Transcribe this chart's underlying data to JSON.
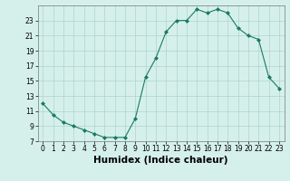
{
  "x": [
    0,
    1,
    2,
    3,
    4,
    5,
    6,
    7,
    8,
    9,
    10,
    11,
    12,
    13,
    14,
    15,
    16,
    17,
    18,
    19,
    20,
    21,
    22,
    23
  ],
  "y": [
    12,
    10.5,
    9.5,
    9,
    8.5,
    8,
    7.5,
    7.5,
    7.5,
    10,
    15.5,
    18,
    21.5,
    23,
    23,
    24.5,
    24,
    24.5,
    24,
    22,
    21,
    20.5,
    15.5,
    14
  ],
  "line_color": "#1a7a62",
  "marker": "D",
  "marker_size": 2,
  "bg_color": "#d5f0eb",
  "grid_color": "#aed4cc",
  "xlabel": "Humidex (Indice chaleur)",
  "xlim": [
    -0.5,
    23.5
  ],
  "ylim": [
    7,
    25
  ],
  "xticks": [
    0,
    1,
    2,
    3,
    4,
    5,
    6,
    7,
    8,
    9,
    10,
    11,
    12,
    13,
    14,
    15,
    16,
    17,
    18,
    19,
    20,
    21,
    22,
    23
  ],
  "yticks": [
    7,
    9,
    11,
    13,
    15,
    17,
    19,
    21,
    23
  ],
  "tick_fontsize": 5.5,
  "label_fontsize": 7.5
}
